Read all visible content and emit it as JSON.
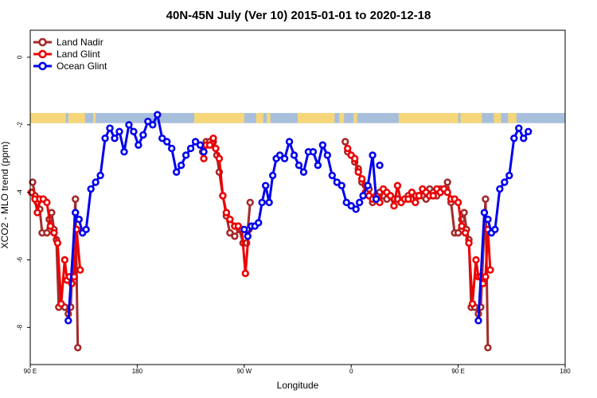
{
  "chart_data": {
    "type": "line",
    "title": "40N-45N July (Ver 10)   2015-01-01 to 2020-12-18",
    "xlabel": "Longitude",
    "ylabel": "XCO2 - MLO trend (ppm)",
    "xlim": [
      90,
      540
    ],
    "ylim": [
      -9.1,
      0.8
    ],
    "x_ticks": [
      {
        "value": 90,
        "label": "90 E"
      },
      {
        "value": 180,
        "label": "180"
      },
      {
        "value": 270,
        "label": "90 W"
      },
      {
        "value": 360,
        "label": "0"
      },
      {
        "value": 450,
        "label": "90 E"
      },
      {
        "value": 540,
        "label": "180"
      }
    ],
    "y_ticks": [
      {
        "value": 0,
        "label": "0"
      },
      {
        "value": -2,
        "label": "-2"
      },
      {
        "value": -4,
        "label": "-4"
      },
      {
        "value": -6,
        "label": "-6"
      },
      {
        "value": -8,
        "label": "-8"
      }
    ],
    "legend_position": "top-left",
    "land_sea_strip": {
      "y_range": [
        -1.95,
        -1.65
      ],
      "ocean_color": "#a8bfdc",
      "land_color": "#f5d77a",
      "land_segments": [
        [
          90,
          120
        ],
        [
          122,
          136
        ],
        [
          143,
          145
        ],
        [
          228,
          270
        ],
        [
          280,
          286
        ],
        [
          289,
          292
        ],
        [
          315,
          346
        ],
        [
          350,
          354
        ],
        [
          362,
          365
        ],
        [
          400,
          450
        ],
        [
          452,
          470
        ],
        [
          480,
          486
        ],
        [
          492,
          499
        ]
      ]
    },
    "series": [
      {
        "name": "Land Nadir",
        "color": "#a52a2a",
        "segments": [
          [
            [
              92,
              -3.7
            ],
            [
              94,
              -4.1
            ],
            [
              96,
              -4.3
            ],
            [
              98,
              -4.5
            ],
            [
              100,
              -5.2
            ],
            [
              104,
              -5.2
            ],
            [
              106,
              -4.8
            ],
            [
              108,
              -4.6
            ],
            [
              110,
              -5.1
            ],
            [
              112,
              -5.4
            ],
            [
              114,
              -7.4
            ],
            [
              119,
              -7.4
            ],
            [
              122,
              -7.6
            ],
            [
              124,
              -7.4
            ],
            [
              128,
              -4.2
            ],
            [
              130,
              -8.6
            ]
          ],
          [
            [
              235,
              -2.8
            ],
            [
              238,
              -2.5
            ],
            [
              241,
              -2.5
            ],
            [
              244,
              -2.5
            ],
            [
              247,
              -2.9
            ],
            [
              249,
              -3.4
            ],
            [
              252,
              -4.1
            ],
            [
              255,
              -4.7
            ],
            [
              258,
              -5.2
            ],
            [
              262,
              -5.3
            ],
            [
              266,
              -5.1
            ],
            [
              269,
              -5.5
            ],
            [
              272,
              -5.5
            ],
            [
              275,
              -4.3
            ]
          ],
          [
            [
              355,
              -2.5
            ],
            [
              357,
              -2.8
            ],
            [
              360,
              -2.9
            ],
            [
              363,
              -3.1
            ],
            [
              366,
              -3.3
            ],
            [
              369,
              -3.7
            ],
            [
              372,
              -3.8
            ],
            [
              375,
              -3.9
            ],
            [
              378,
              -4.3
            ],
            [
              381,
              -4.2
            ],
            [
              384,
              -4.0
            ],
            [
              387,
              -4.1
            ],
            [
              390,
              -4.2
            ],
            [
              393,
              -4.1
            ],
            [
              396,
              -4.2
            ],
            [
              399,
              -4.2
            ],
            [
              402,
              -4.3
            ],
            [
              405,
              -4.2
            ],
            [
              408,
              -4.1
            ],
            [
              411,
              -4.2
            ],
            [
              414,
              -4.1
            ],
            [
              417,
              -4.1
            ],
            [
              420,
              -4.1
            ],
            [
              423,
              -4.2
            ],
            [
              426,
              -3.9
            ],
            [
              429,
              -4.0
            ],
            [
              432,
              -4.1
            ],
            [
              435,
              -3.9
            ],
            [
              438,
              -3.9
            ],
            [
              441,
              -3.7
            ],
            [
              444,
              -4.3
            ],
            [
              447,
              -5.2
            ],
            [
              450,
              -5.2
            ],
            [
              453,
              -4.8
            ],
            [
              455,
              -4.6
            ],
            [
              457,
              -5.1
            ],
            [
              459,
              -5.4
            ],
            [
              461,
              -7.4
            ],
            [
              464,
              -7.4
            ],
            [
              467,
              -7.6
            ],
            [
              469,
              -7.4
            ],
            [
              473,
              -4.2
            ],
            [
              475,
              -8.6
            ]
          ]
        ]
      },
      {
        "name": "Land Glint",
        "color": "#ee0000",
        "segments": [
          [
            [
              91,
              -4.0
            ],
            [
              94,
              -4.2
            ],
            [
              96,
              -4.6
            ],
            [
              98,
              -4.2
            ],
            [
              101,
              -4.2
            ],
            [
              104,
              -4.3
            ],
            [
              107,
              -5.0
            ],
            [
              110,
              -5.2
            ],
            [
              113,
              -5.5
            ],
            [
              116,
              -7.3
            ],
            [
              119,
              -6.0
            ],
            [
              121,
              -6.6
            ],
            [
              123,
              -6.5
            ],
            [
              125,
              -6.7
            ],
            [
              127,
              -6.5
            ],
            [
              129,
              -5.1
            ],
            [
              132,
              -6.3
            ]
          ],
          [
            [
              236,
              -3.0
            ],
            [
              238,
              -2.6
            ],
            [
              241,
              -2.6
            ],
            [
              244,
              -2.4
            ],
            [
              246,
              -2.7
            ],
            [
              249,
              -3.0
            ],
            [
              252,
              -4.1
            ],
            [
              255,
              -4.6
            ],
            [
              258,
              -4.8
            ],
            [
              262,
              -5.0
            ],
            [
              265,
              -5.0
            ],
            [
              268,
              -5.1
            ],
            [
              271,
              -6.4
            ],
            [
              274,
              -5.1
            ]
          ],
          [
            [
              357,
              -2.7
            ],
            [
              360,
              -2.9
            ],
            [
              363,
              -3.0
            ],
            [
              366,
              -3.4
            ],
            [
              369,
              -3.6
            ],
            [
              372,
              -4.0
            ],
            [
              375,
              -4.1
            ],
            [
              378,
              -4.2
            ],
            [
              381,
              -4.1
            ],
            [
              384,
              -4.3
            ],
            [
              387,
              -3.9
            ],
            [
              390,
              -4.0
            ],
            [
              393,
              -4.1
            ],
            [
              396,
              -4.4
            ],
            [
              399,
              -3.8
            ],
            [
              402,
              -4.3
            ],
            [
              405,
              -4.2
            ],
            [
              408,
              -4.2
            ],
            [
              411,
              -4.0
            ],
            [
              414,
              -4.3
            ],
            [
              417,
              -4.1
            ],
            [
              420,
              -3.9
            ],
            [
              423,
              -4.0
            ],
            [
              426,
              -4.1
            ],
            [
              429,
              -4.1
            ],
            [
              432,
              -3.9
            ],
            [
              435,
              -4.0
            ],
            [
              438,
              -3.9
            ],
            [
              441,
              -4.0
            ],
            [
              444,
              -4.2
            ],
            [
              447,
              -4.2
            ],
            [
              450,
              -4.3
            ],
            [
              453,
              -5.0
            ],
            [
              456,
              -5.2
            ],
            [
              459,
              -5.5
            ],
            [
              462,
              -7.3
            ],
            [
              465,
              -6.0
            ],
            [
              467,
              -6.5
            ],
            [
              469,
              -6.5
            ],
            [
              471,
              -6.7
            ],
            [
              473,
              -6.5
            ],
            [
              475,
              -5.1
            ],
            [
              477,
              -6.3
            ]
          ]
        ]
      },
      {
        "name": "Ocean Glint",
        "color": "#0000ee",
        "segments": [
          [
            [
              122,
              -7.8
            ],
            [
              128,
              -4.6
            ],
            [
              131,
              -4.8
            ],
            [
              134,
              -5.2
            ],
            [
              137,
              -5.1
            ],
            [
              141,
              -3.9
            ],
            [
              145,
              -3.7
            ],
            [
              149,
              -3.5
            ],
            [
              153,
              -2.4
            ],
            [
              157,
              -2.1
            ],
            [
              161,
              -2.4
            ],
            [
              165,
              -2.2
            ],
            [
              169,
              -2.8
            ],
            [
              173,
              -2.0
            ],
            [
              177,
              -2.2
            ],
            [
              181,
              -2.6
            ],
            [
              185,
              -2.3
            ],
            [
              189,
              -1.9
            ],
            [
              193,
              -2.0
            ],
            [
              197,
              -1.7
            ],
            [
              201,
              -2.4
            ],
            [
              205,
              -2.5
            ],
            [
              209,
              -2.7
            ],
            [
              213,
              -3.4
            ],
            [
              217,
              -3.2
            ],
            [
              221,
              -2.9
            ],
            [
              225,
              -2.7
            ],
            [
              229,
              -2.5
            ],
            [
              233,
              -2.6
            ],
            [
              236,
              -2.8
            ]
          ],
          [
            [
              270,
              -5.1
            ],
            [
              273,
              -5.3
            ],
            [
              276,
              -5.0
            ],
            [
              279,
              -5.0
            ],
            [
              282,
              -4.9
            ],
            [
              285,
              -4.3
            ],
            [
              288,
              -3.8
            ],
            [
              291,
              -4.3
            ],
            [
              294,
              -3.5
            ],
            [
              297,
              -3.0
            ],
            [
              300,
              -2.9
            ],
            [
              304,
              -3.0
            ],
            [
              308,
              -2.5
            ],
            [
              312,
              -2.9
            ],
            [
              316,
              -3.2
            ],
            [
              320,
              -3.4
            ],
            [
              324,
              -2.8
            ],
            [
              328,
              -2.8
            ],
            [
              332,
              -3.2
            ],
            [
              336,
              -2.6
            ],
            [
              340,
              -2.9
            ],
            [
              344,
              -3.5
            ],
            [
              348,
              -3.7
            ],
            [
              352,
              -3.8
            ],
            [
              356,
              -4.3
            ],
            [
              360,
              -4.4
            ],
            [
              364,
              -4.5
            ],
            [
              367,
              -4.3
            ],
            [
              370,
              -4.1
            ],
            [
              374,
              -3.8
            ],
            [
              378,
              -2.9
            ],
            [
              381,
              -4.2
            ]
          ],
          [
            [
              384,
              -3.2
            ]
          ],
          [
            [
              467,
              -7.8
            ],
            [
              472,
              -4.6
            ],
            [
              475,
              -4.8
            ],
            [
              478,
              -5.2
            ],
            [
              481,
              -5.1
            ],
            [
              485,
              -3.9
            ],
            [
              489,
              -3.7
            ],
            [
              493,
              -3.5
            ],
            [
              497,
              -2.4
            ],
            [
              501,
              -2.1
            ],
            [
              505,
              -2.4
            ],
            [
              509,
              -2.2
            ]
          ]
        ]
      }
    ]
  }
}
